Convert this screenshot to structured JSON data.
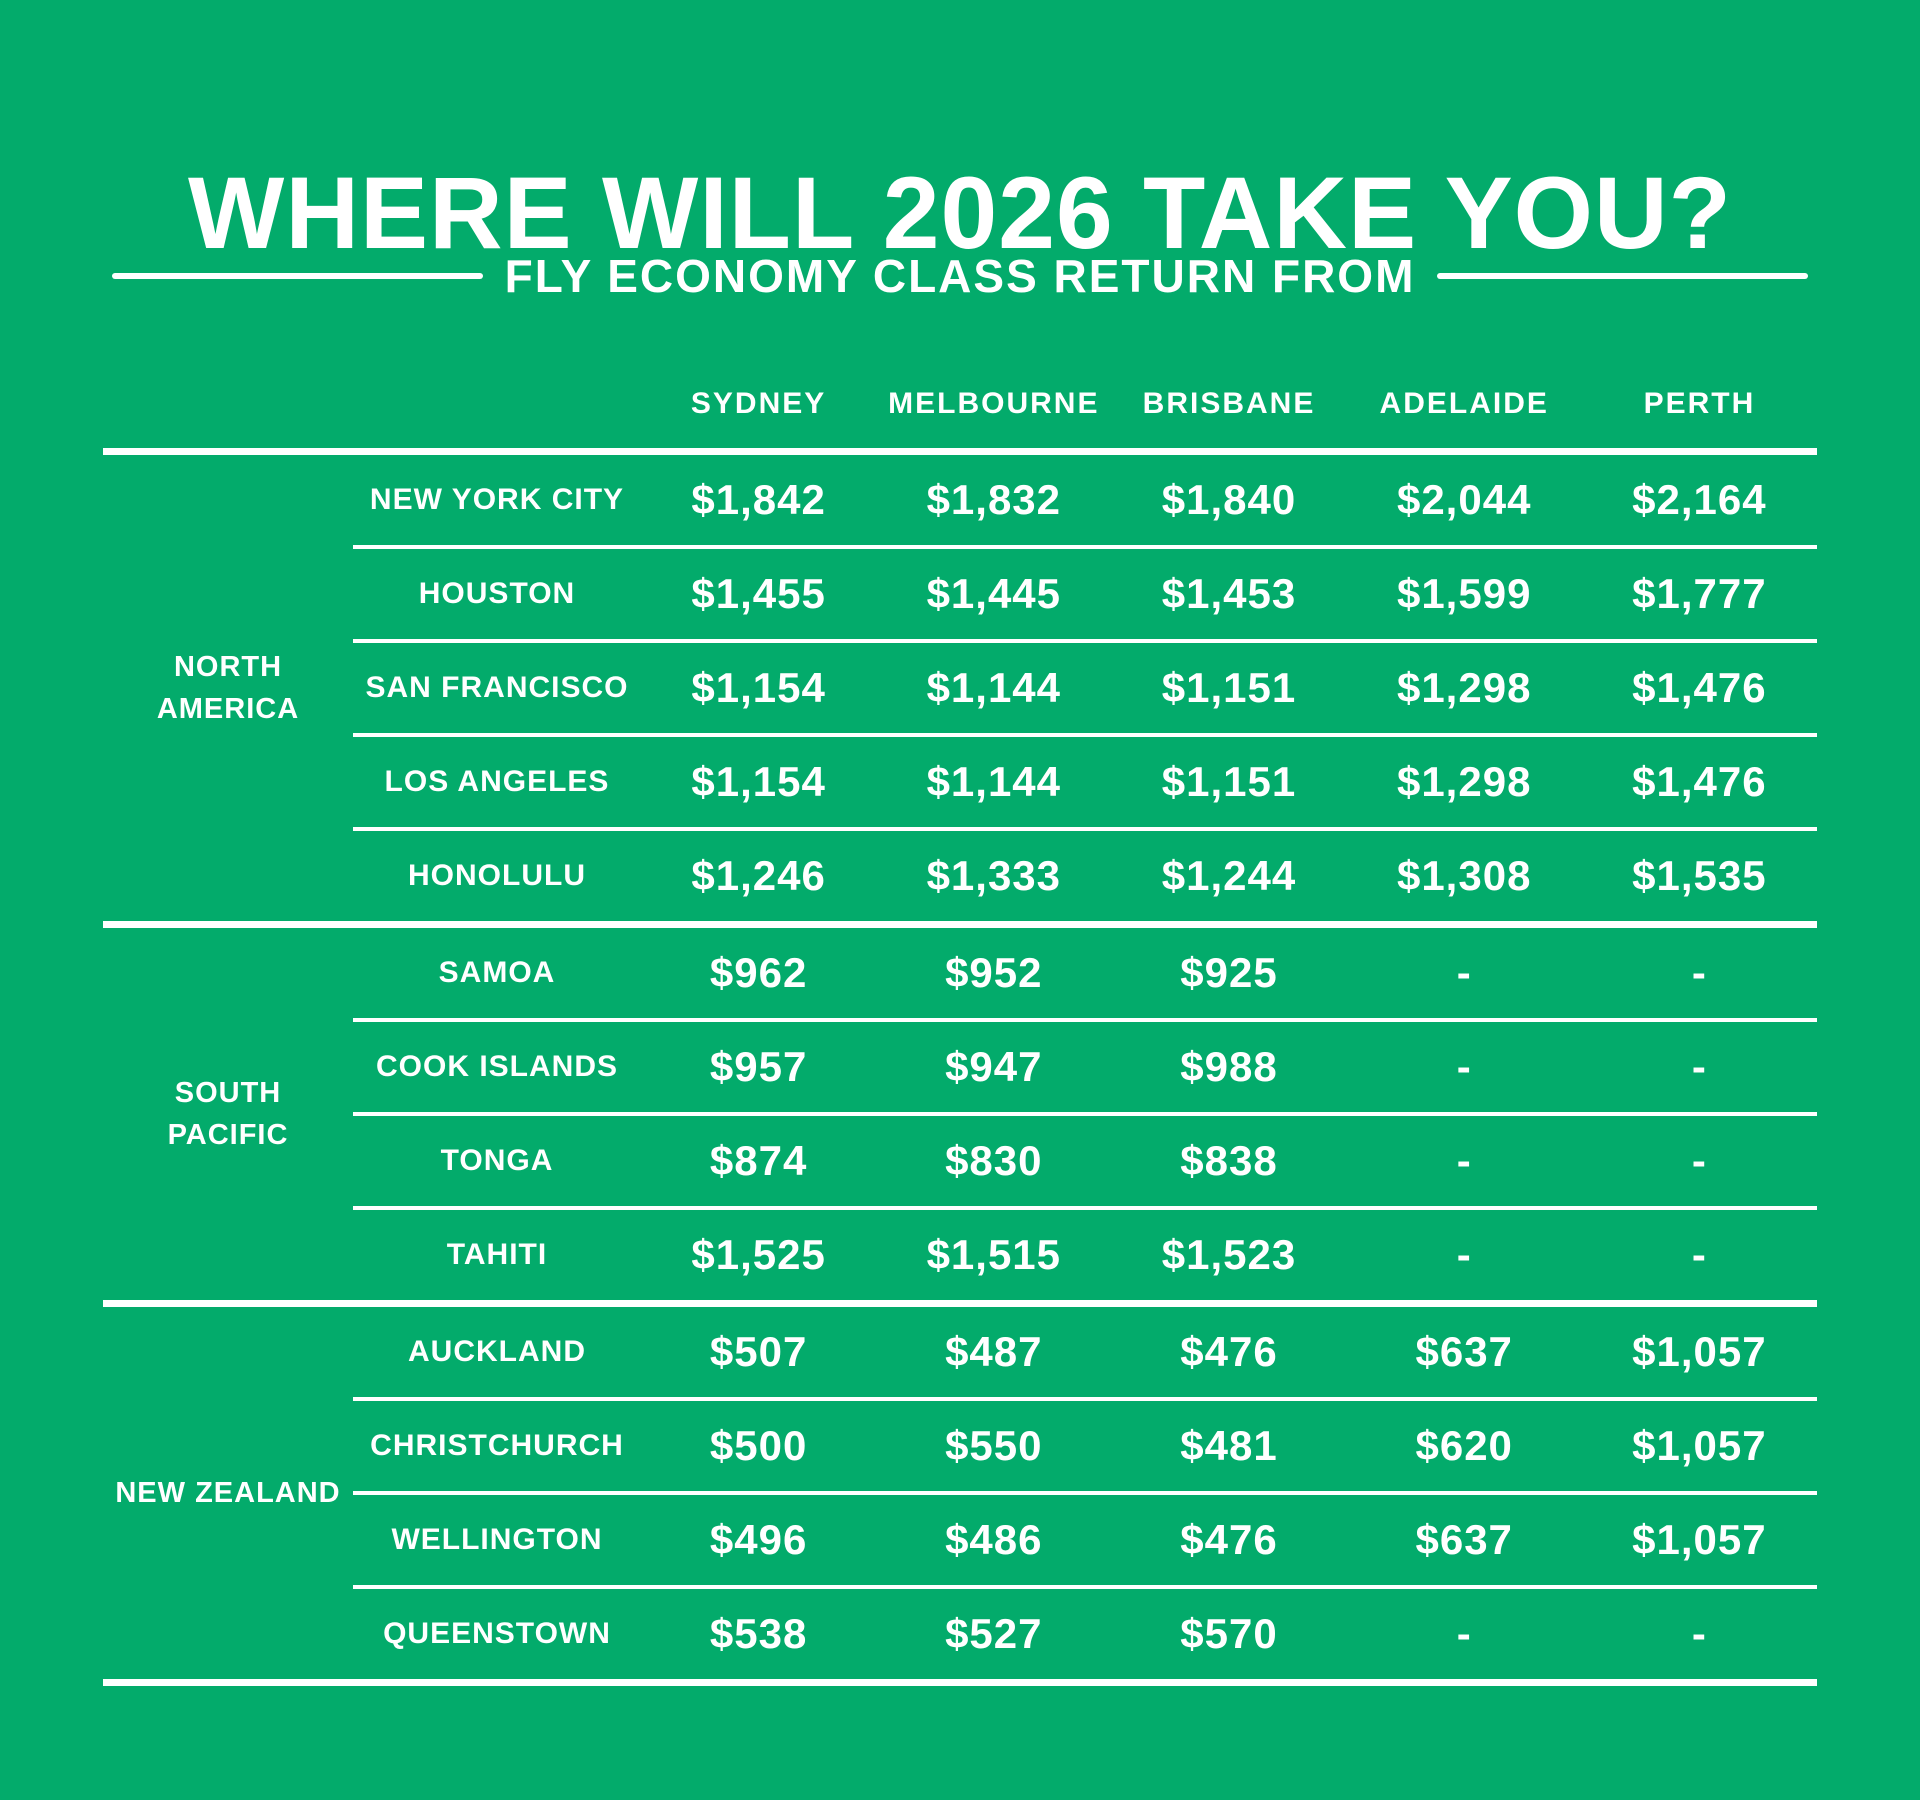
{
  "page": {
    "background_color": "#03ab6b",
    "text_color": "#ffffff",
    "divider_color": "#ffffff"
  },
  "header": {
    "title": "WHERE WILL 2026 TAKE YOU?",
    "subtitle": "FLY ECONOMY CLASS RETURN FROM"
  },
  "chart_data": {
    "type": "table",
    "title": "WHERE WILL 2026 TAKE YOU?",
    "subtitle": "FLY ECONOMY CLASS RETURN FROM",
    "columns": [
      "SYDNEY",
      "MELBOURNE",
      "BRISBANE",
      "ADELAIDE",
      "PERTH"
    ],
    "missing_value_marker": "-",
    "groups": [
      {
        "region_lines": [
          "NORTH",
          "AMERICA"
        ],
        "rows": [
          {
            "destination": "NEW YORK CITY",
            "prices": [
              "$1,842",
              "$1,832",
              "$1,840",
              "$2,044",
              "$2,164"
            ]
          },
          {
            "destination": "HOUSTON",
            "prices": [
              "$1,455",
              "$1,445",
              "$1,453",
              "$1,599",
              "$1,777"
            ]
          },
          {
            "destination": "SAN FRANCISCO",
            "prices": [
              "$1,154",
              "$1,144",
              "$1,151",
              "$1,298",
              "$1,476"
            ]
          },
          {
            "destination": "LOS ANGELES",
            "prices": [
              "$1,154",
              "$1,144",
              "$1,151",
              "$1,298",
              "$1,476"
            ]
          },
          {
            "destination": "HONOLULU",
            "prices": [
              "$1,246",
              "$1,333",
              "$1,244",
              "$1,308",
              "$1,535"
            ]
          }
        ]
      },
      {
        "region_lines": [
          "SOUTH",
          "PACIFIC"
        ],
        "rows": [
          {
            "destination": "SAMOA",
            "prices": [
              "$962",
              "$952",
              "$925",
              "-",
              "-"
            ]
          },
          {
            "destination": "COOK ISLANDS",
            "prices": [
              "$957",
              "$947",
              "$988",
              "-",
              "-"
            ]
          },
          {
            "destination": "TONGA",
            "prices": [
              "$874",
              "$830",
              "$838",
              "-",
              "-"
            ]
          },
          {
            "destination": "TAHITI",
            "prices": [
              "$1,525",
              "$1,515",
              "$1,523",
              "-",
              "-"
            ]
          }
        ]
      },
      {
        "region_lines": [
          "NEW ZEALAND"
        ],
        "rows": [
          {
            "destination": "AUCKLAND",
            "prices": [
              "$507",
              "$487",
              "$476",
              "$637",
              "$1,057"
            ]
          },
          {
            "destination": "CHRISTCHURCH",
            "prices": [
              "$500",
              "$550",
              "$481",
              "$620",
              "$1,057"
            ]
          },
          {
            "destination": "WELLINGTON",
            "prices": [
              "$496",
              "$486",
              "$476",
              "$637",
              "$1,057"
            ]
          },
          {
            "destination": "QUEENSTOWN",
            "prices": [
              "$538",
              "$527",
              "$570",
              "-",
              "-"
            ]
          }
        ]
      }
    ]
  }
}
